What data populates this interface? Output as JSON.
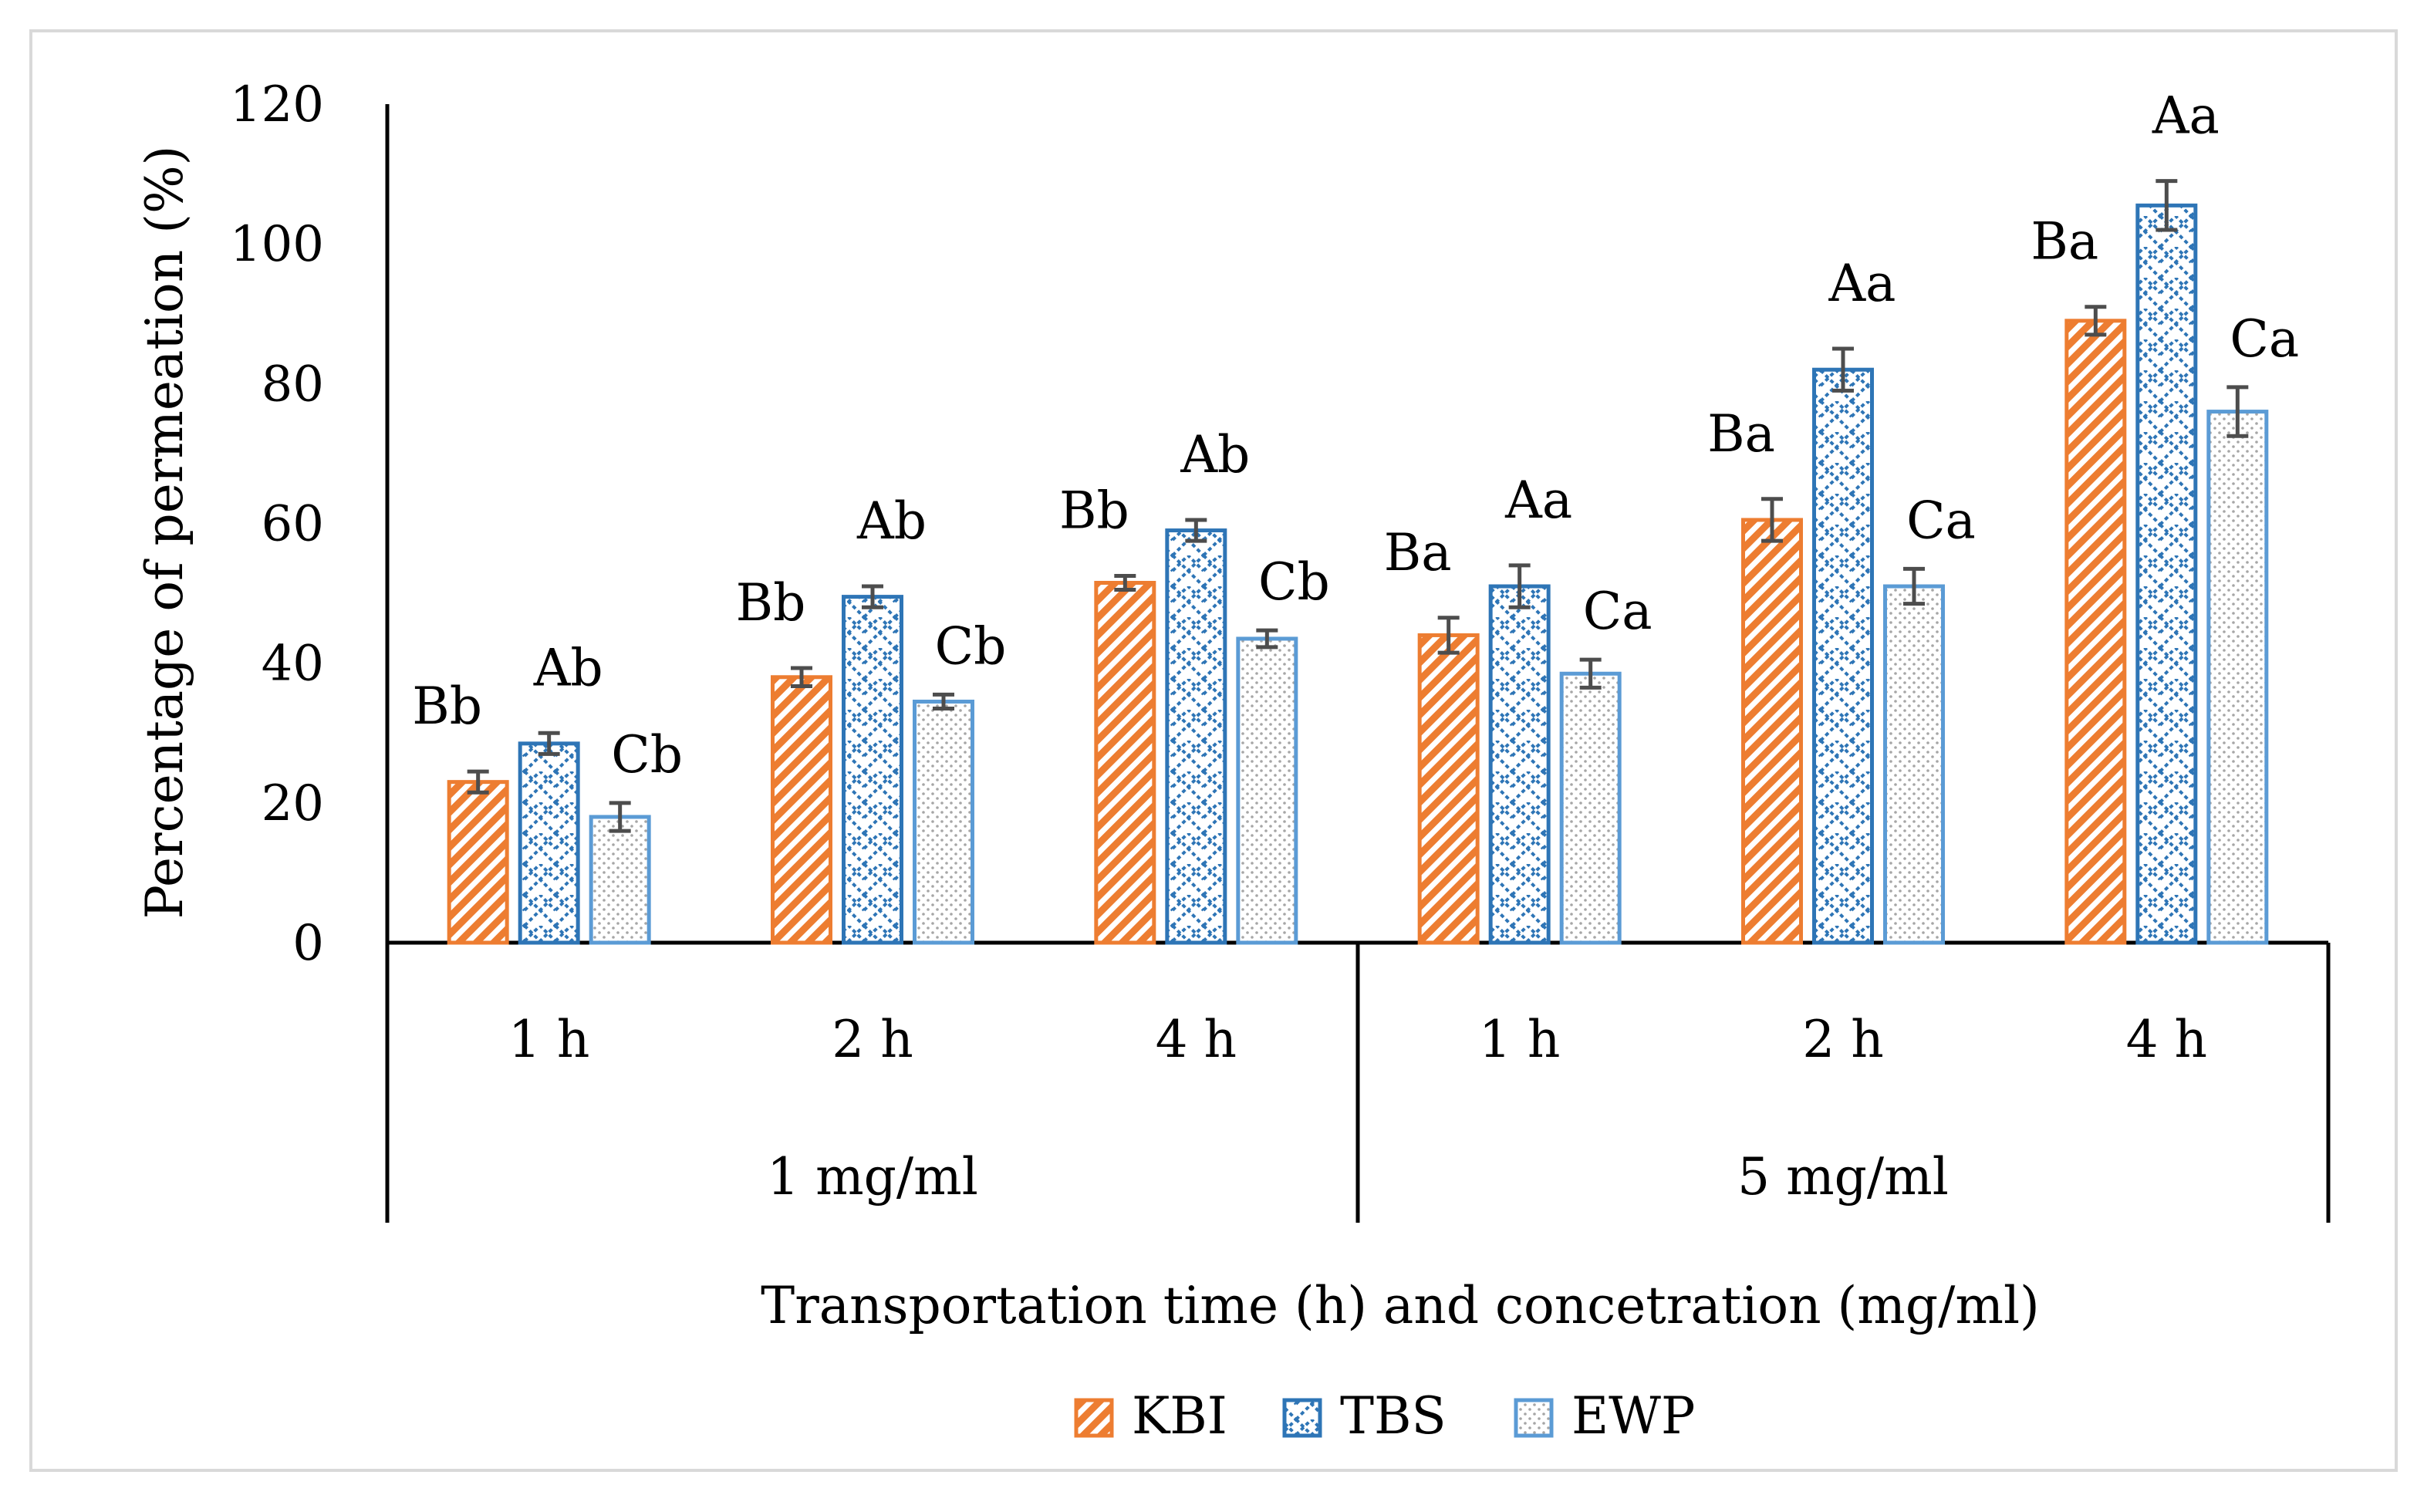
{
  "chart_data": {
    "type": "bar",
    "title": "",
    "ylabel": "Percentage of permeation (%)",
    "xlabel": "Transportation time (h) and concetration (mg/ml)",
    "ylim": [
      0,
      120
    ],
    "yticks": [
      0,
      20,
      40,
      60,
      80,
      100,
      120
    ],
    "grid": false,
    "legend_position": "bottom",
    "groups": [
      {
        "label": "1 mg/ml",
        "categories": [
          "1 h",
          "2 h",
          "4 h"
        ]
      },
      {
        "label": "5 mg/ml",
        "categories": [
          "1 h",
          "2 h",
          "4 h"
        ]
      }
    ],
    "categories": [
      "1 h",
      "2 h",
      "4 h",
      "1 h",
      "2 h",
      "4 h"
    ],
    "series": [
      {
        "name": "KBI",
        "color": "#ed7d31",
        "pattern": "diagonal-stripes",
        "values": [
          23,
          38,
          51.5,
          44,
          60.5,
          89
        ],
        "errors": [
          1.5,
          1.3,
          1,
          2.5,
          3,
          2
        ],
        "labels": [
          "Bb",
          "Bb",
          "Bb",
          "Ba",
          "Ba",
          "Ba"
        ]
      },
      {
        "name": "TBS",
        "color": "#2e75b6",
        "pattern": "zigzag",
        "values": [
          28.5,
          49.5,
          59,
          51,
          82,
          105.5
        ],
        "errors": [
          1.5,
          1.5,
          1.5,
          3,
          3,
          3.5
        ],
        "labels": [
          "Ab",
          "Ab",
          "Ab",
          "Aa",
          "Aa",
          "Aa"
        ]
      },
      {
        "name": "EWP",
        "color": "#5b9bd5",
        "pattern": "dots",
        "values": [
          18,
          34.5,
          43.5,
          38.5,
          51,
          76
        ],
        "errors": [
          2,
          1,
          1.2,
          2,
          2.5,
          3.5
        ],
        "labels": [
          "Cb",
          "Cb",
          "Cb",
          "Ca",
          "Ca",
          "Ca"
        ]
      }
    ]
  }
}
